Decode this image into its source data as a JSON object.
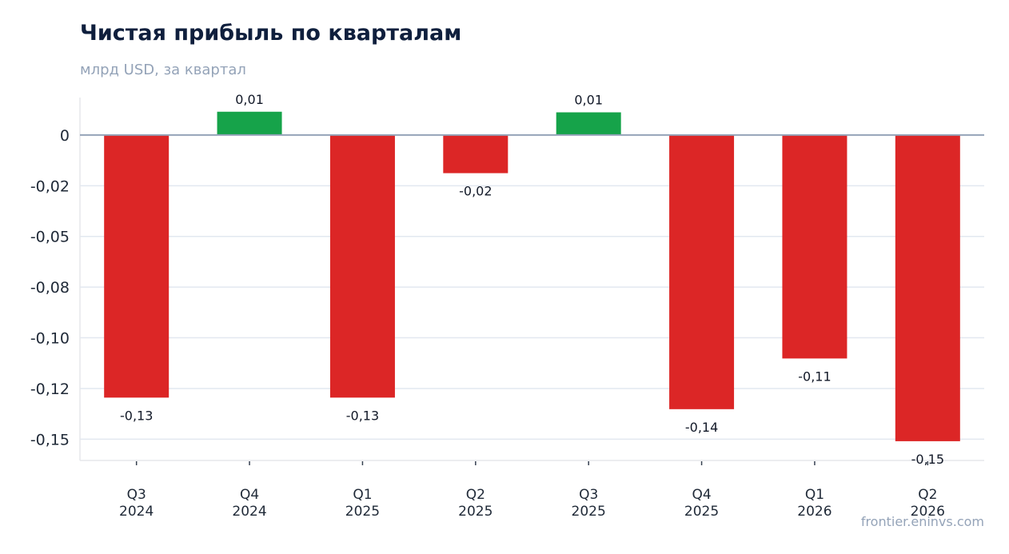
{
  "header": {
    "title": "Чистая прибыль по кварталам",
    "subtitle": "млрд USD, за квартал",
    "source": "frontier.eninvs.com"
  },
  "colors": {
    "positive": "#16a34a",
    "negative": "#dc2626",
    "zero_line": "#94a3b8",
    "grid": "#e2e8f0",
    "axis": "#e5e7eb"
  },
  "chart_data": {
    "type": "bar",
    "categories": [
      [
        "Q3",
        "2024"
      ],
      [
        "Q4",
        "2024"
      ],
      [
        "Q1",
        "2025"
      ],
      [
        "Q2",
        "2025"
      ],
      [
        "Q3",
        "2025"
      ],
      [
        "Q4",
        "2025"
      ],
      [
        "Q1",
        "2026"
      ],
      [
        "Q2",
        "2026"
      ]
    ],
    "values": [
      -0.1295,
      0.0115,
      -0.1295,
      -0.0188,
      0.0112,
      -0.1352,
      -0.1102,
      -0.151
    ],
    "data_labels": [
      "-0,13",
      "0,01",
      "-0,13",
      "-0,02",
      "0,01",
      "-0,14",
      "-0,11",
      "-0,15"
    ],
    "yticks": [
      0,
      -0.025,
      -0.05,
      -0.075,
      -0.1,
      -0.125,
      -0.15
    ],
    "ytick_labels": [
      "0",
      "-0,02",
      "-0,05",
      "-0,08",
      "-0,10",
      "-0,12",
      "-0,15"
    ],
    "ylim": [
      -0.1605,
      0.0185
    ],
    "grid": true,
    "legend": "none"
  }
}
